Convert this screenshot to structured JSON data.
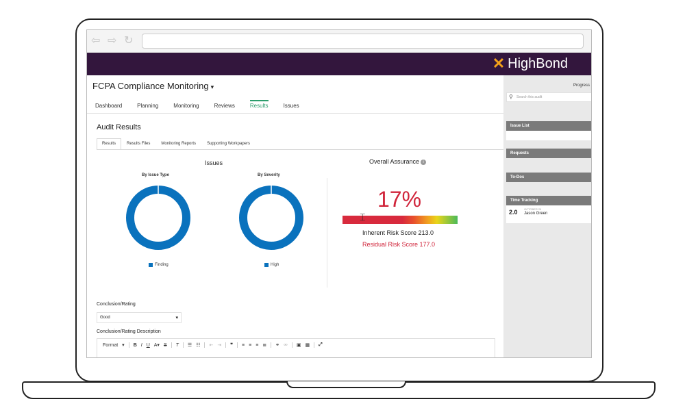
{
  "browser": {
    "back": "⇦",
    "forward": "⇨",
    "reload": "↻"
  },
  "brand": {
    "mark": "✕",
    "name": "HighBond"
  },
  "header": {
    "title": "FCPA Compliance Monitoring",
    "tabs": [
      {
        "label": "Dashboard"
      },
      {
        "label": "Planning"
      },
      {
        "label": "Monitoring"
      },
      {
        "label": "Reviews"
      },
      {
        "label": "Results"
      },
      {
        "label": "Issues"
      }
    ],
    "active_tab": "Results"
  },
  "main": {
    "section_title": "Audit Results",
    "subtabs": [
      {
        "label": "Results"
      },
      {
        "label": "Results Files"
      },
      {
        "label": "Monitoring Reports"
      },
      {
        "label": "Supporting Workpapers"
      }
    ],
    "issues_title": "Issues",
    "by_issue_type": {
      "title": "By Issue Type",
      "legend": "Finding",
      "color": "#0a72bd"
    },
    "by_severity": {
      "title": "By Severity",
      "legend": "High",
      "color": "#0a72bd"
    },
    "overall_assurance": {
      "title": "Overall Assurance",
      "percent": "17%",
      "inherent": "Inherent Risk Score 213.0",
      "residual": "Residual Risk Score 177.0"
    },
    "conclusion_label": "Conclusion/Rating",
    "conclusion_value": "Good",
    "description_label": "Conclusion/Rating Description",
    "editor_format": "Format"
  },
  "sidebar": {
    "progress": "Progress",
    "search_placeholder": "Search this audit",
    "panels": [
      {
        "label": "Issue List"
      },
      {
        "label": "Requests"
      },
      {
        "label": "To-Dos"
      },
      {
        "label": "Time Tracking"
      }
    ],
    "time_entry": {
      "hours": "2.0",
      "date": "OCTOBER 29",
      "name": "Jason Green"
    }
  }
}
